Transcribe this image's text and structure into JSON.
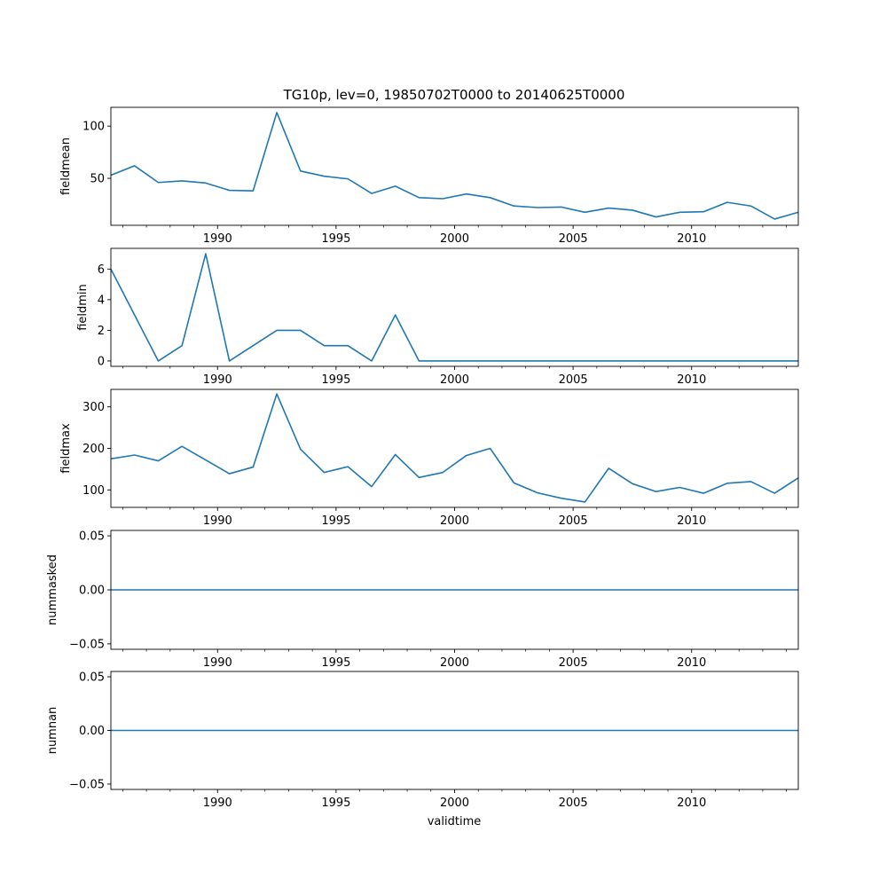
{
  "figure": {
    "title": "TG10p, lev=0, 19850702T0000 to 20140625T0000",
    "xlabel": "validtime"
  },
  "colors": {
    "line": "#1f77b4",
    "axis": "#000000",
    "background": "#ffffff"
  },
  "chart_data": [
    {
      "type": "line",
      "name": "fieldmean",
      "ylabel": "fieldmean",
      "xlim": [
        1985.5,
        2014.5
      ],
      "ylim": [
        5,
        118
      ],
      "yticks": [
        50,
        100
      ],
      "x": [
        1985.5,
        1986.5,
        1987.5,
        1988.5,
        1989.5,
        1990.5,
        1991.5,
        1992.5,
        1993.5,
        1994.5,
        1995.5,
        1996.5,
        1997.5,
        1998.5,
        1999.5,
        2000.5,
        2001.5,
        2002.5,
        2003.5,
        2004.5,
        2005.5,
        2006.5,
        2007.5,
        2008.5,
        2009.5,
        2010.5,
        2011.5,
        2012.5,
        2013.5,
        2014.5
      ],
      "values": [
        53,
        62,
        46,
        47.5,
        45.5,
        38.5,
        38,
        113,
        57,
        52,
        49.5,
        35.5,
        42.5,
        31.5,
        30.5,
        35,
        31.5,
        23.5,
        22,
        22.5,
        17.5,
        21.5,
        19.5,
        13,
        17.5,
        18,
        27,
        23.5,
        11,
        17.5
      ]
    },
    {
      "type": "line",
      "name": "fieldmin",
      "ylabel": "fieldmin",
      "xlim": [
        1985.5,
        2014.5
      ],
      "ylim": [
        -0.35,
        7.35
      ],
      "yticks": [
        0,
        2,
        4,
        6
      ],
      "x": [
        1985.5,
        1986.5,
        1987.5,
        1988.5,
        1989.5,
        1990.5,
        1991.5,
        1992.5,
        1993.5,
        1994.5,
        1995.5,
        1996.5,
        1997.5,
        1998.5,
        1999.5,
        2000.5,
        2001.5,
        2002.5,
        2003.5,
        2004.5,
        2005.5,
        2006.5,
        2007.5,
        2008.5,
        2009.5,
        2010.5,
        2011.5,
        2012.5,
        2013.5,
        2014.5
      ],
      "values": [
        6,
        3,
        0,
        1,
        7,
        0,
        1,
        2,
        2,
        1,
        1,
        0,
        3,
        0,
        0,
        0,
        0,
        0,
        0,
        0,
        0,
        0,
        0,
        0,
        0,
        0,
        0,
        0,
        0,
        0
      ]
    },
    {
      "type": "line",
      "name": "fieldmax",
      "ylabel": "fieldmax",
      "xlim": [
        1985.5,
        2014.5
      ],
      "ylim": [
        58,
        342
      ],
      "yticks": [
        100,
        200,
        300
      ],
      "x": [
        1985.5,
        1986.5,
        1987.5,
        1988.5,
        1989.5,
        1990.5,
        1991.5,
        1992.5,
        1993.5,
        1994.5,
        1995.5,
        1996.5,
        1997.5,
        1998.5,
        1999.5,
        2000.5,
        2001.5,
        2002.5,
        2003.5,
        2004.5,
        2005.5,
        2006.5,
        2007.5,
        2008.5,
        2009.5,
        2010.5,
        2011.5,
        2012.5,
        2013.5,
        2014.5
      ],
      "values": [
        175,
        184,
        170,
        205,
        172,
        139,
        155,
        331,
        198,
        142,
        156,
        108,
        185,
        130,
        142,
        183,
        200,
        117,
        93,
        80,
        71,
        152,
        115,
        96,
        106,
        92,
        116,
        120,
        92,
        129
      ]
    },
    {
      "type": "line",
      "name": "nummasked",
      "ylabel": "nummasked",
      "xlim": [
        1985.5,
        2014.5
      ],
      "ylim": [
        -0.055,
        0.055
      ],
      "yticks": [
        -0.05,
        0.0,
        0.05
      ],
      "ytick_labels": [
        "−0.05",
        "0.00",
        "0.05"
      ],
      "x": [
        1985.5,
        2014.5
      ],
      "values": [
        0,
        0
      ]
    },
    {
      "type": "line",
      "name": "numnan",
      "ylabel": "numnan",
      "xlim": [
        1985.5,
        2014.5
      ],
      "ylim": [
        -0.055,
        0.055
      ],
      "yticks": [
        -0.05,
        0.0,
        0.05
      ],
      "ytick_labels": [
        "−0.05",
        "0.00",
        "0.05"
      ],
      "x": [
        1985.5,
        2014.5
      ],
      "values": [
        0,
        0
      ]
    }
  ],
  "xaxis": {
    "major_ticks": [
      1990,
      1995,
      2000,
      2005,
      2010
    ],
    "major_labels": [
      "1990",
      "1995",
      "2000",
      "2005",
      "2010"
    ],
    "minor_ticks": [
      1986,
      1987,
      1988,
      1989,
      1991,
      1992,
      1993,
      1994,
      1996,
      1997,
      1998,
      1999,
      2001,
      2002,
      2003,
      2004,
      2006,
      2007,
      2008,
      2009,
      2011,
      2012,
      2013,
      2014
    ]
  }
}
